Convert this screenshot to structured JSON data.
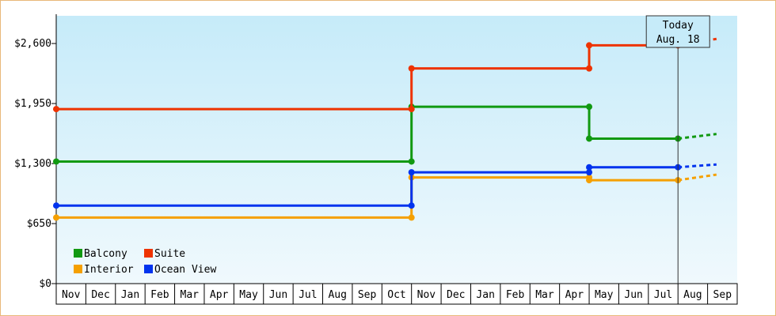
{
  "chart_data": {
    "type": "line",
    "title": "",
    "xlabel": "",
    "ylabel": "",
    "ylim": [
      0,
      2900
    ],
    "y_ticks": [
      {
        "value": 0,
        "label": "$0"
      },
      {
        "value": 650,
        "label": "$650"
      },
      {
        "value": 1300,
        "label": "$1,300"
      },
      {
        "value": 1950,
        "label": "$1,950"
      },
      {
        "value": 2600,
        "label": "$2,600"
      }
    ],
    "months": [
      "Nov",
      "Dec",
      "Jan",
      "Feb",
      "Mar",
      "Apr",
      "May",
      "Jun",
      "Jul",
      "Aug",
      "Sep",
      "Oct",
      "Nov",
      "Dec",
      "Jan",
      "Feb",
      "Mar",
      "Apr",
      "May",
      "Jun",
      "Jul",
      "Aug",
      "Sep"
    ],
    "grid": true,
    "legend_position": "bottom-left",
    "today_marker": {
      "line1": "Today",
      "line2": "Aug. 18",
      "x": 21.0
    },
    "series": [
      {
        "name": "Balcony",
        "color": "#119911",
        "points": [
          [
            0,
            1322
          ],
          [
            12.0,
            1322
          ],
          [
            12.0,
            1915
          ],
          [
            18.0,
            1915
          ],
          [
            18.0,
            1570
          ],
          [
            21.0,
            1570
          ]
        ],
        "projection": [
          [
            21.0,
            1570
          ],
          [
            22.3,
            1620
          ]
        ]
      },
      {
        "name": "Suite",
        "color": "#ee3300",
        "points": [
          [
            0,
            1890
          ],
          [
            12.0,
            1890
          ],
          [
            12.0,
            2330
          ],
          [
            18.0,
            2330
          ],
          [
            18.0,
            2580
          ],
          [
            21.0,
            2580
          ]
        ],
        "projection": [
          [
            21.0,
            2580
          ],
          [
            22.3,
            2650
          ]
        ]
      },
      {
        "name": "Interior",
        "color": "#f5a000",
        "points": [
          [
            0,
            715
          ],
          [
            12.0,
            715
          ],
          [
            12.0,
            1150
          ],
          [
            18.0,
            1150
          ],
          [
            18.0,
            1120
          ],
          [
            21.0,
            1120
          ]
        ],
        "projection": [
          [
            21.0,
            1120
          ],
          [
            22.3,
            1180
          ]
        ]
      },
      {
        "name": "Ocean View",
        "color": "#0033ee",
        "points": [
          [
            0,
            845
          ],
          [
            12.0,
            845
          ],
          [
            12.0,
            1205
          ],
          [
            18.0,
            1205
          ],
          [
            18.0,
            1260
          ],
          [
            21.0,
            1260
          ]
        ],
        "projection": [
          [
            21.0,
            1260
          ],
          [
            22.3,
            1290
          ]
        ]
      }
    ]
  }
}
